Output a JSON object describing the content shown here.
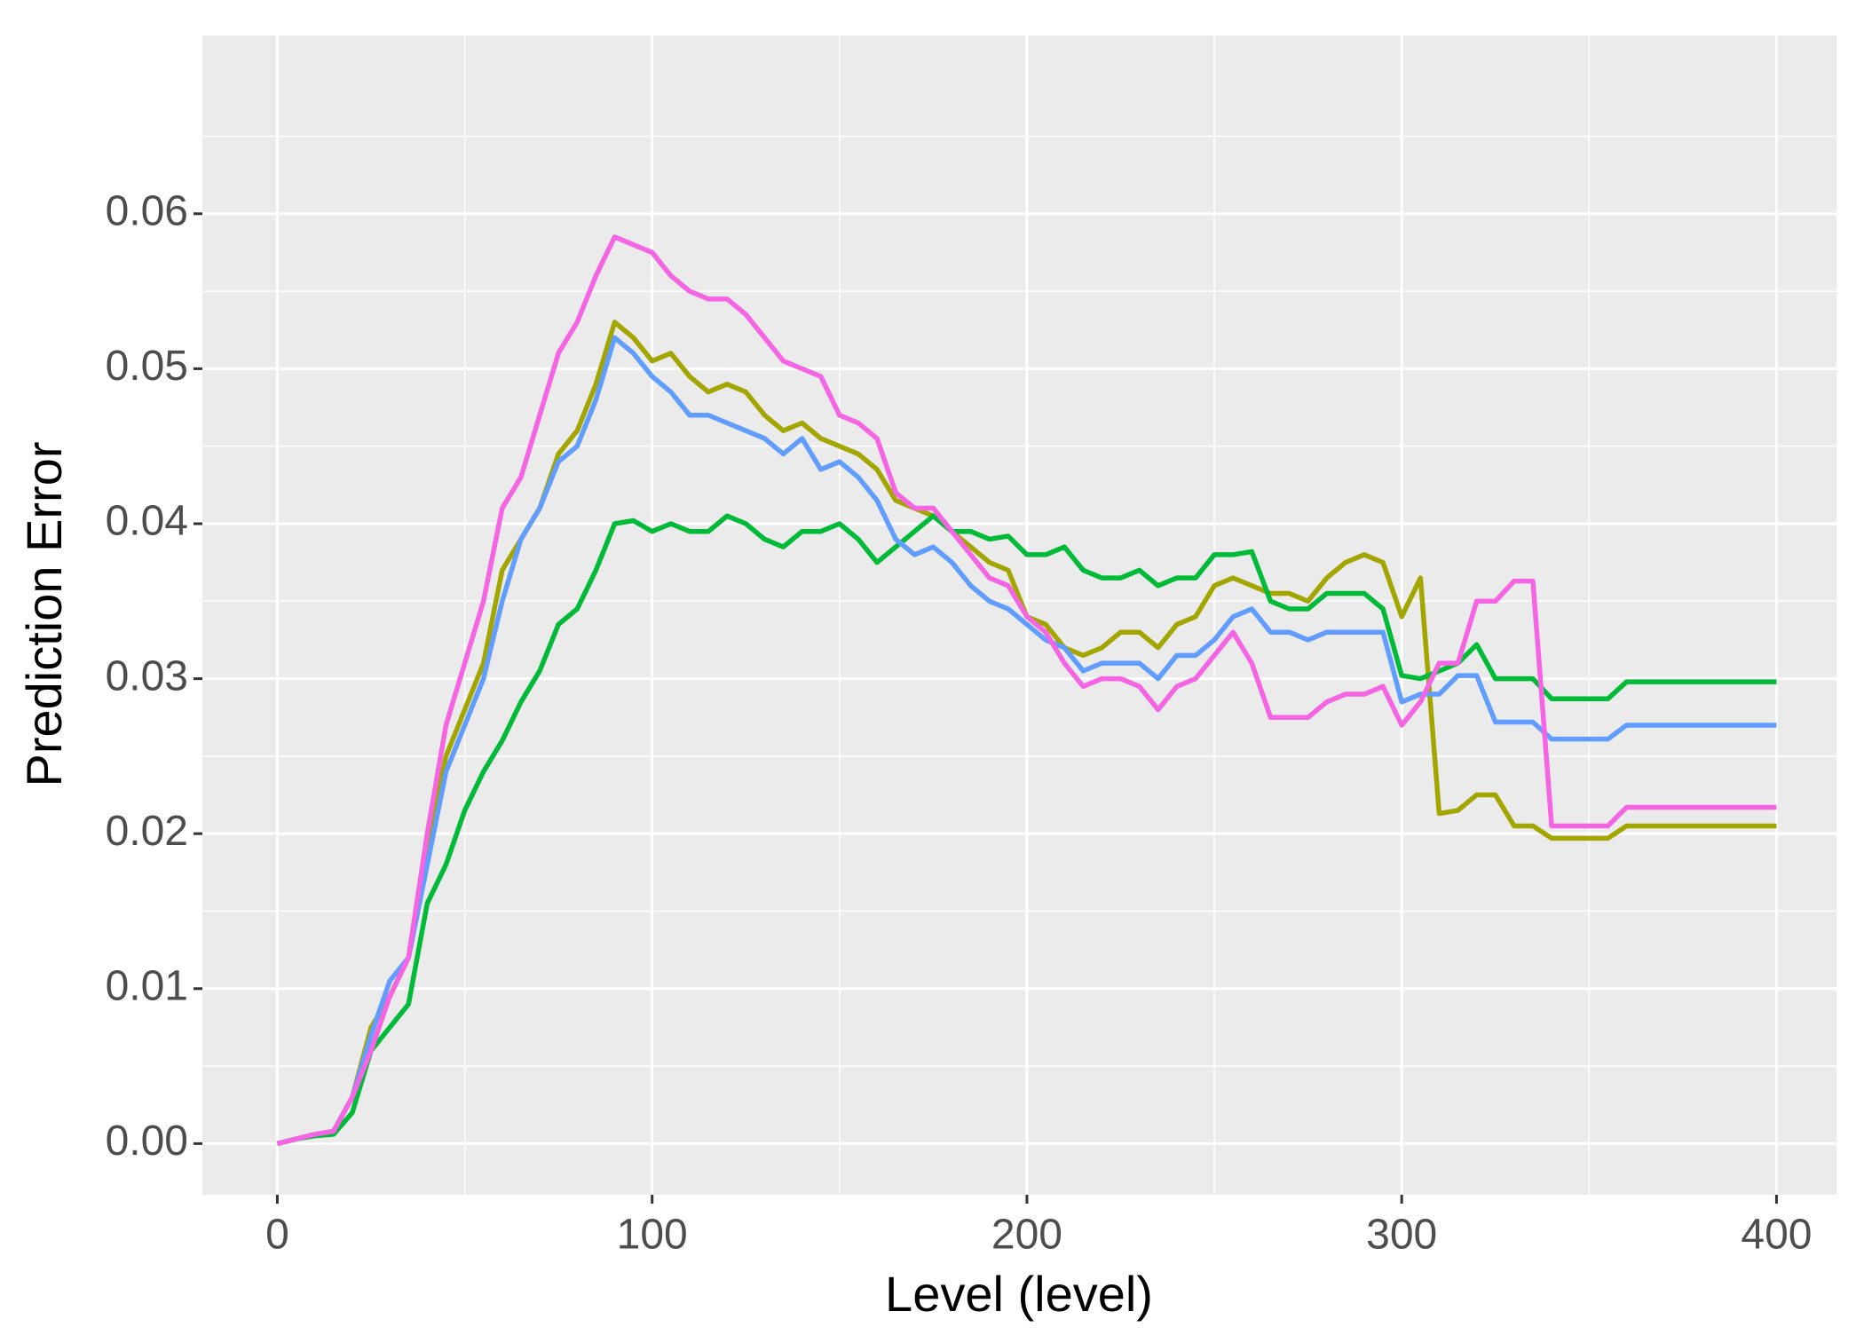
{
  "chart_data": {
    "type": "line",
    "xlabel": "Level (level)",
    "ylabel": "Prediction Error",
    "x": [
      0,
      5,
      10,
      15,
      20,
      25,
      30,
      35,
      40,
      45,
      50,
      55,
      60,
      65,
      70,
      75,
      80,
      85,
      90,
      95,
      100,
      105,
      110,
      115,
      120,
      125,
      130,
      135,
      140,
      145,
      150,
      155,
      160,
      165,
      170,
      175,
      180,
      185,
      190,
      195,
      200,
      205,
      210,
      215,
      220,
      225,
      230,
      235,
      240,
      245,
      250,
      255,
      260,
      265,
      270,
      275,
      280,
      285,
      290,
      295,
      300,
      305,
      310,
      315,
      320,
      325,
      330,
      335,
      340,
      345,
      350,
      355,
      360,
      365,
      370,
      375,
      380,
      385,
      390,
      395,
      400
    ],
    "series": [
      {
        "color": "#A3A500",
        "values": [
          0,
          0.0003,
          0.0006,
          0.0008,
          0.003,
          0.0075,
          0.0095,
          0.012,
          0.019,
          0.025,
          0.028,
          0.031,
          0.037,
          0.039,
          0.041,
          0.0445,
          0.046,
          0.049,
          0.053,
          0.052,
          0.0505,
          0.051,
          0.0495,
          0.0485,
          0.049,
          0.0485,
          0.047,
          0.046,
          0.0465,
          0.0455,
          0.045,
          0.0445,
          0.0435,
          0.0415,
          0.041,
          0.0405,
          0.0395,
          0.0385,
          0.0375,
          0.037,
          0.034,
          0.0335,
          0.032,
          0.0315,
          0.032,
          0.033,
          0.033,
          0.032,
          0.0335,
          0.034,
          0.036,
          0.0365,
          0.036,
          0.0355,
          0.0355,
          0.035,
          0.0365,
          0.0375,
          0.038,
          0.0375,
          0.034,
          0.0365,
          0.0213,
          0.0215,
          0.0225,
          0.0225,
          0.0205,
          0.0205,
          0.0197,
          0.0197,
          0.0197,
          0.0197,
          0.0205,
          0.0205,
          0.0205,
          0.0205,
          0.0205,
          0.0205,
          0.0205,
          0.0205,
          0.0205
        ]
      },
      {
        "color": "#00BA38",
        "values": [
          0,
          0.0003,
          0.0005,
          0.0006,
          0.002,
          0.006,
          0.0075,
          0.009,
          0.0155,
          0.018,
          0.0215,
          0.024,
          0.026,
          0.0285,
          0.0305,
          0.0335,
          0.0345,
          0.037,
          0.04,
          0.0402,
          0.0395,
          0.04,
          0.0395,
          0.0395,
          0.0405,
          0.04,
          0.039,
          0.0385,
          0.0395,
          0.0395,
          0.04,
          0.039,
          0.0375,
          0.0385,
          0.0395,
          0.0405,
          0.0395,
          0.0395,
          0.039,
          0.0392,
          0.038,
          0.038,
          0.0385,
          0.037,
          0.0365,
          0.0365,
          0.037,
          0.036,
          0.0365,
          0.0365,
          0.038,
          0.038,
          0.0382,
          0.035,
          0.0345,
          0.0345,
          0.0355,
          0.0355,
          0.0355,
          0.0345,
          0.0302,
          0.03,
          0.0305,
          0.031,
          0.0322,
          0.03,
          0.03,
          0.03,
          0.0287,
          0.0287,
          0.0287,
          0.0287,
          0.0298,
          0.0298,
          0.0298,
          0.0298,
          0.0298,
          0.0298,
          0.0298,
          0.0298,
          0.0298
        ]
      },
      {
        "color": "#619CFF",
        "values": [
          0,
          0.0003,
          0.0006,
          0.0008,
          0.003,
          0.007,
          0.0105,
          0.012,
          0.018,
          0.024,
          0.027,
          0.03,
          0.035,
          0.039,
          0.041,
          0.044,
          0.045,
          0.048,
          0.052,
          0.051,
          0.0495,
          0.0485,
          0.047,
          0.047,
          0.0465,
          0.046,
          0.0455,
          0.0445,
          0.0455,
          0.0435,
          0.044,
          0.043,
          0.0415,
          0.039,
          0.038,
          0.0385,
          0.0375,
          0.036,
          0.035,
          0.0345,
          0.0335,
          0.0325,
          0.032,
          0.0305,
          0.031,
          0.031,
          0.031,
          0.03,
          0.0315,
          0.0315,
          0.0325,
          0.034,
          0.0345,
          0.033,
          0.033,
          0.0325,
          0.033,
          0.033,
          0.033,
          0.033,
          0.0285,
          0.029,
          0.029,
          0.0302,
          0.0302,
          0.0272,
          0.0272,
          0.0272,
          0.0261,
          0.0261,
          0.0261,
          0.0261,
          0.027,
          0.027,
          0.027,
          0.027,
          0.027,
          0.027,
          0.027,
          0.027,
          0.027
        ]
      },
      {
        "color": "#F564E3",
        "values": [
          0,
          0.0003,
          0.0006,
          0.0008,
          0.003,
          0.006,
          0.0095,
          0.012,
          0.02,
          0.027,
          0.031,
          0.035,
          0.041,
          0.043,
          0.047,
          0.051,
          0.053,
          0.056,
          0.0585,
          0.058,
          0.0575,
          0.056,
          0.055,
          0.0545,
          0.0545,
          0.0535,
          0.052,
          0.0505,
          0.05,
          0.0495,
          0.047,
          0.0465,
          0.0455,
          0.042,
          0.041,
          0.041,
          0.0395,
          0.038,
          0.0365,
          0.036,
          0.034,
          0.033,
          0.031,
          0.0295,
          0.03,
          0.03,
          0.0295,
          0.028,
          0.0295,
          0.03,
          0.0315,
          0.033,
          0.031,
          0.0275,
          0.0275,
          0.0275,
          0.0285,
          0.029,
          0.029,
          0.0295,
          0.027,
          0.0285,
          0.031,
          0.031,
          0.035,
          0.035,
          0.0363,
          0.0363,
          0.0205,
          0.0205,
          0.0205,
          0.0205,
          0.0217,
          0.0217,
          0.0217,
          0.0217,
          0.0217,
          0.0217,
          0.0217,
          0.0217,
          0.0217
        ]
      }
    ],
    "xlim": [
      -20,
      416
    ],
    "xticks": [
      0,
      100,
      200,
      300,
      400
    ],
    "ylim": [
      -0.0033,
      0.0715
    ],
    "yticks": [
      {
        "value": 0,
        "label": "0.00"
      },
      0.01,
      0.02,
      0.03,
      0.04,
      0.05,
      0.06
    ],
    "grid": true,
    "minor_grid": true,
    "panel_color": "#EBEBEB"
  }
}
